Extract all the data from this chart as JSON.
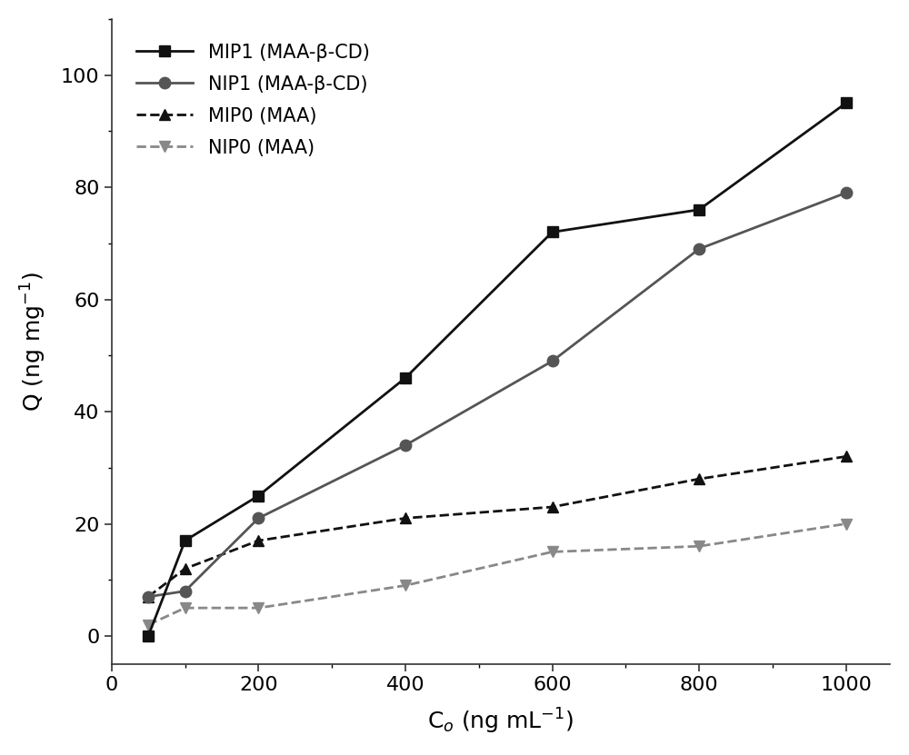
{
  "MIP1_x": [
    50,
    100,
    200,
    400,
    600,
    800,
    1000
  ],
  "MIP1_y": [
    0,
    17,
    25,
    46,
    72,
    76,
    95
  ],
  "NIP1_x": [
    50,
    100,
    200,
    400,
    600,
    800,
    1000
  ],
  "NIP1_y": [
    7,
    8,
    21,
    34,
    49,
    69,
    79
  ],
  "MIP0_x": [
    50,
    100,
    200,
    400,
    600,
    800,
    1000
  ],
  "MIP0_y": [
    7,
    12,
    17,
    21,
    23,
    28,
    32
  ],
  "NIP0_x": [
    50,
    100,
    200,
    400,
    600,
    800,
    1000
  ],
  "NIP0_y": [
    2,
    5,
    5,
    9,
    15,
    16,
    20
  ],
  "MIP1_label": "MIP1 (MAA-β-CD)",
  "NIP1_label": "NIP1 (MAA-β-CD)",
  "MIP0_label": "MIP0 (MAA)",
  "NIP0_label": "NIP0 (MAA)",
  "xlabel": "C$_o$ (ng mL$^{-1}$)",
  "ylabel": "Q (ng mg$^{-1}$)",
  "xlim": [
    0,
    1060
  ],
  "ylim": [
    -5,
    110
  ],
  "xticks": [
    0,
    200,
    400,
    600,
    800,
    1000
  ],
  "yticks": [
    0,
    20,
    40,
    60,
    80,
    100
  ],
  "MIP1_color": "#111111",
  "NIP1_color": "#555555",
  "MIP0_color": "#111111",
  "NIP0_color": "#888888",
  "background_color": "#ffffff",
  "linewidth": 2.0,
  "markersize": 9
}
